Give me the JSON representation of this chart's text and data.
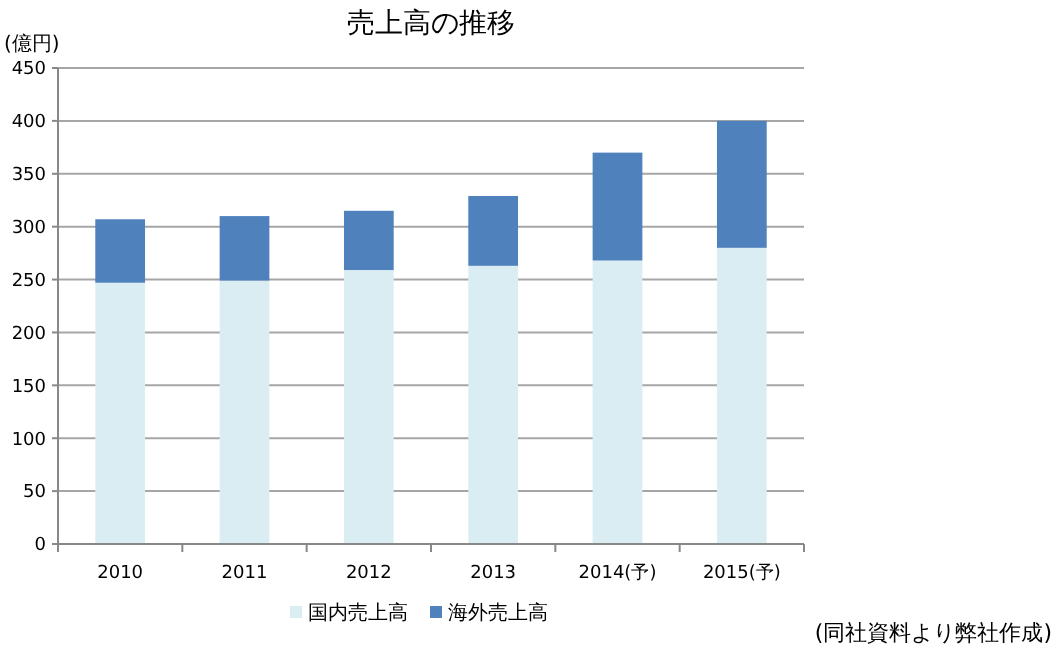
{
  "chart_data": {
    "type": "bar",
    "title": "売上高の推移",
    "ylabel": "(億円)",
    "stacked": true,
    "categories": [
      "2010",
      "2011",
      "2012",
      "2013",
      "2014(予)",
      "2015(予)"
    ],
    "series": [
      {
        "name": "国内売上高",
        "color": "#daedf3",
        "values": [
          247,
          249,
          259,
          263,
          268,
          280
        ]
      },
      {
        "name": "海外売上高",
        "color": "#4f81bd",
        "values": [
          60,
          61,
          56,
          66,
          102,
          120
        ]
      }
    ],
    "ylim": [
      0,
      450
    ],
    "yticks": [
      0,
      50,
      100,
      150,
      200,
      250,
      300,
      350,
      400,
      450
    ],
    "grid": "y",
    "legend": "bottom",
    "annotations": [
      "(同社資料より弊社作成)"
    ]
  }
}
